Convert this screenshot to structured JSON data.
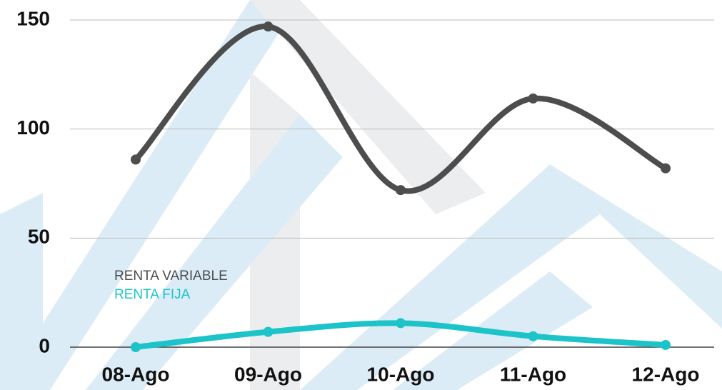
{
  "chart_data": {
    "type": "line",
    "categories": [
      "08-Ago",
      "09-Ago",
      "10-Ago",
      "11-Ago",
      "12-Ago"
    ],
    "series": [
      {
        "name": "RENTA VARIABLE",
        "color": "#4d4d4d",
        "values": [
          86,
          147,
          72,
          114,
          82
        ]
      },
      {
        "name": "RENTA FIJA",
        "color": "#1cc4c9",
        "values": [
          0,
          7,
          11,
          5,
          1
        ]
      }
    ],
    "ylim": [
      0,
      150
    ],
    "yticks": [
      0,
      50,
      100,
      150
    ],
    "grid": true
  }
}
